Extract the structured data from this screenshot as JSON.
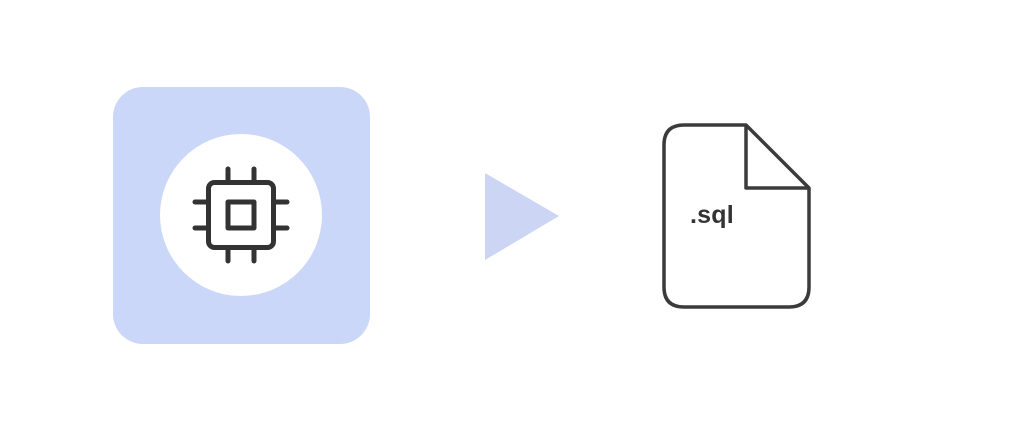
{
  "diagram": {
    "source": {
      "icon": "cpu-chip-icon",
      "tile_color": "#cad7f9",
      "circle_color": "#ffffff",
      "icon_color": "#333333"
    },
    "connector": {
      "icon": "play-arrow-icon",
      "color": "#ccd6f4"
    },
    "target": {
      "icon": "file-icon",
      "extension_label": ".sql",
      "stroke_color": "#3b3b3b"
    }
  }
}
